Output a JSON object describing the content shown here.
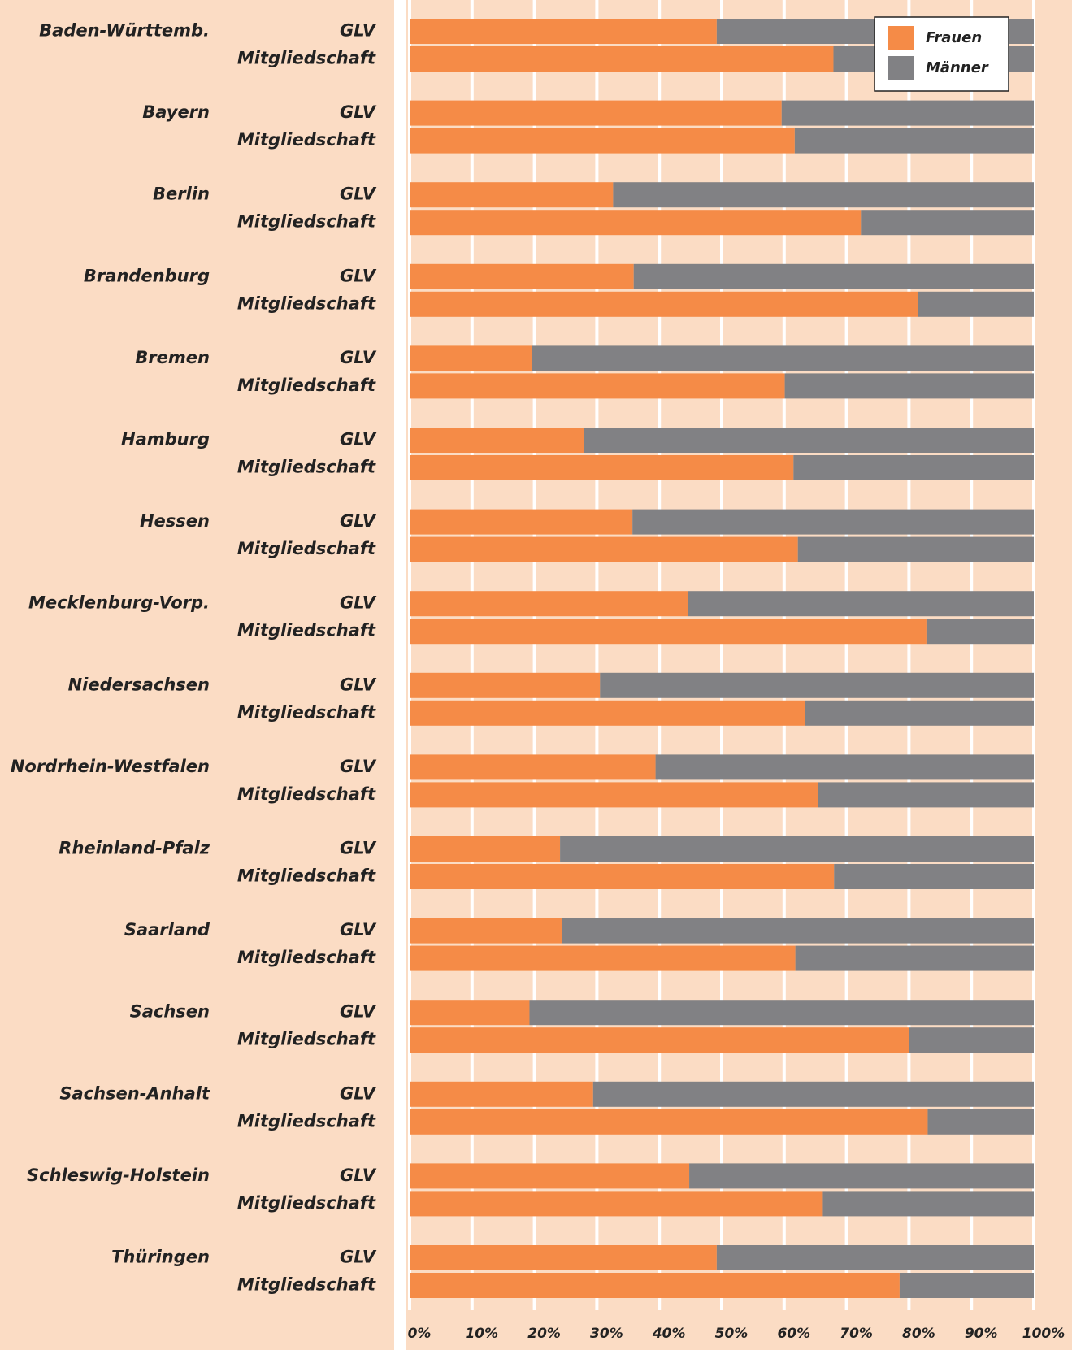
{
  "chart_data": {
    "type": "stacked_barh",
    "groups": [
      "Baden-Württemb.",
      "Bayern",
      "Berlin",
      "Brandenburg",
      "Bremen",
      "Hamburg",
      "Hessen",
      "Mecklenburg-Vorp.",
      "Niedersachsen",
      "Nordrhein-Westfalen",
      "Rheinland-Pfalz",
      "Saarland",
      "Sachsen",
      "Sachsen-Anhalt",
      "Schleswig-Holstein",
      "Thüringen"
    ],
    "categories": [
      "GLV",
      "Mitgliedschaft",
      "GLV",
      "Mitgliedschaft",
      "GLV",
      "Mitgliedschaft",
      "GLV",
      "Mitgliedschaft",
      "GLV",
      "Mitgliedschaft",
      "GLV",
      "Mitgliedschaft",
      "GLV",
      "Mitgliedschaft",
      "GLV",
      "Mitgliedschaft",
      "GLV",
      "Mitgliedschaft",
      "GLV",
      "Mitgliedschaft",
      "GLV",
      "Mitgliedschaft",
      "GLV",
      "Mitgliedschaft",
      "GLV",
      "Mitgliedschaft",
      "GLV",
      "Mitgliedschaft",
      "GLV",
      "Mitgliedschaft",
      "GLV",
      "Mitgliedschaft"
    ],
    "series": [
      {
        "name": "Frauen",
        "color": "#f58b47",
        "values": [
          49.2,
          67.9,
          59.6,
          61.7,
          32.6,
          72.3,
          35.9,
          81.4,
          19.6,
          60.1,
          27.9,
          61.5,
          35.7,
          62.2,
          44.6,
          82.8,
          30.5,
          63.4,
          39.4,
          65.4,
          24.1,
          68.0,
          24.4,
          61.8,
          19.2,
          80.0,
          29.4,
          83.0,
          44.8,
          66.2,
          49.2,
          78.5
        ]
      },
      {
        "name": "Männer",
        "color": "#818184",
        "values": [
          50.8,
          32.1,
          40.4,
          38.3,
          67.4,
          27.7,
          64.1,
          18.6,
          80.4,
          39.9,
          72.1,
          38.5,
          64.3,
          37.8,
          55.4,
          17.2,
          69.5,
          36.6,
          60.6,
          34.6,
          75.9,
          32.0,
          75.6,
          38.2,
          80.8,
          20.0,
          70.6,
          17.0,
          55.2,
          33.8,
          50.8,
          21.5
        ]
      }
    ],
    "xlim": [
      0,
      100
    ],
    "xticks": [
      {
        "value": 0,
        "label": "0%"
      },
      {
        "value": 10,
        "label": "10%"
      },
      {
        "value": 20,
        "label": "20%"
      },
      {
        "value": 30,
        "label": "30%"
      },
      {
        "value": 40,
        "label": "40%"
      },
      {
        "value": 50,
        "label": "50%"
      },
      {
        "value": 60,
        "label": "60%"
      },
      {
        "value": 70,
        "label": "70%"
      },
      {
        "value": 80,
        "label": "80%"
      },
      {
        "value": 90,
        "label": "90%"
      },
      {
        "value": 100,
        "label": "100%"
      }
    ],
    "grid": true,
    "legend": "top-right"
  }
}
